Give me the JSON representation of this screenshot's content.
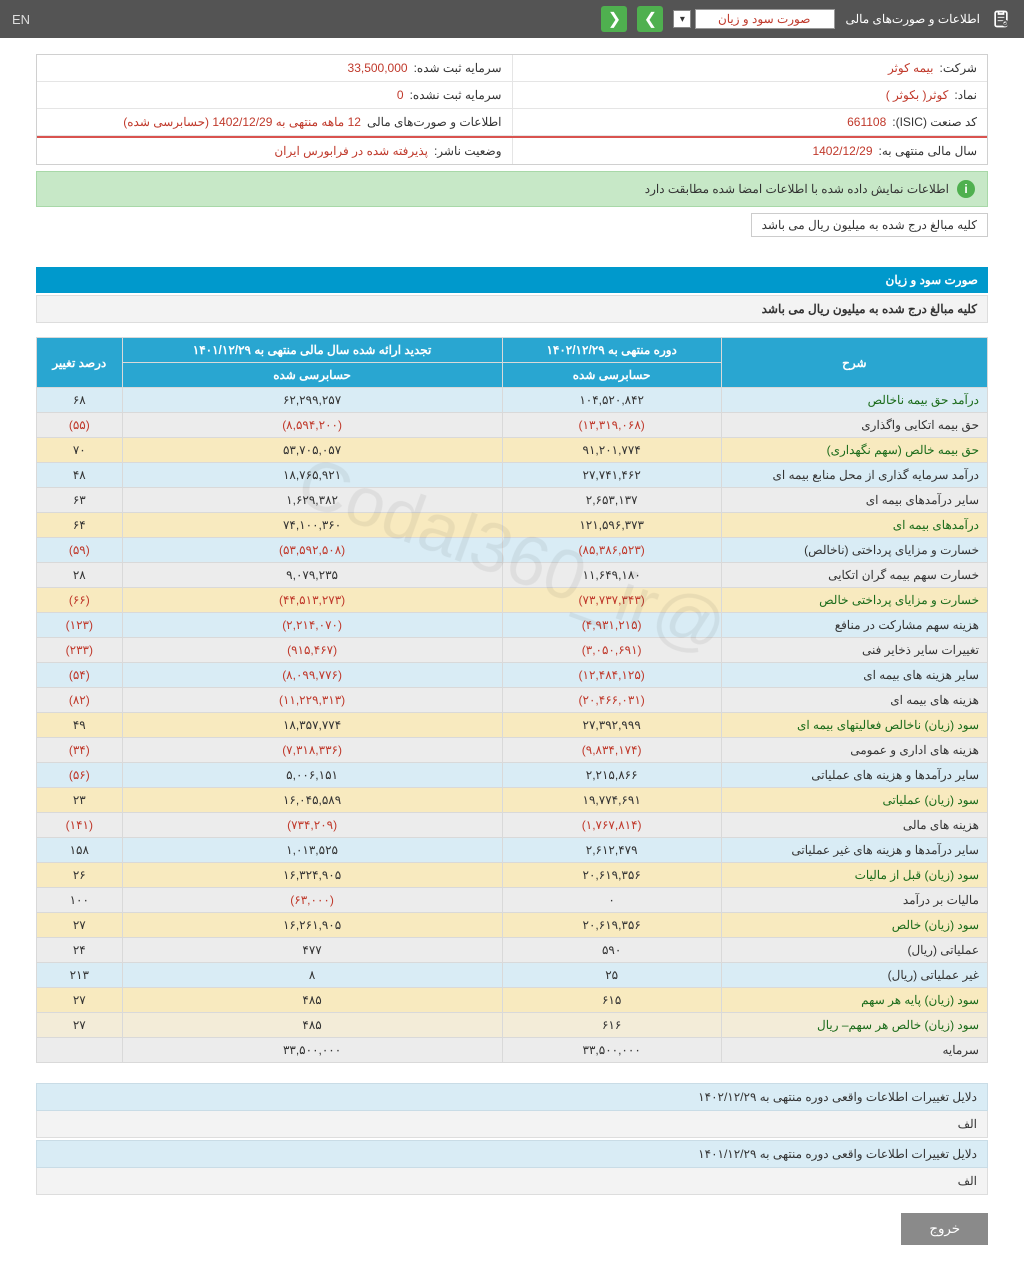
{
  "topbar": {
    "title": "اطلاعات و صورت‌های مالی",
    "select_value": "صورت سود و زیان",
    "lang": "EN"
  },
  "meta": {
    "rows": [
      [
        {
          "label": "شرکت:",
          "value": "بیمه کوثر"
        },
        {
          "label": "سرمایه ثبت شده:",
          "value": "33,500,000"
        }
      ],
      [
        {
          "label": "نماد:",
          "value": "کوثر( بکوثر )"
        },
        {
          "label": "سرمایه ثبت نشده:",
          "value": "0"
        }
      ],
      [
        {
          "label": "کد صنعت (ISIC):",
          "value": "661108"
        },
        {
          "label": "اطلاعات و صورت‌های مالی",
          "value": "12 ماهه منتهی به 1402/12/29 (حسابرسی شده)"
        }
      ],
      [
        {
          "label": "سال مالی منتهی به:",
          "value": "1402/12/29"
        },
        {
          "label": "وضعیت ناشر:",
          "value": "پذيرفته شده در فرابورس ايران"
        }
      ]
    ]
  },
  "alert": "اطلاعات نمایش داده شده با اطلاعات امضا شده مطابقت دارد",
  "note": "کلیه مبالغ درج شده به میلیون ریال می باشد",
  "section": {
    "title": "صورت سود و زیان",
    "subtitle": "کلیه مبالغ درج شده به میلیون ریال می باشد"
  },
  "table": {
    "headers": {
      "desc": "شرح",
      "period1": "دوره منتهی به ۱۴۰۲/۱۲/۲۹",
      "period2": "تجدید ارائه شده سال مالی منتهی به ۱۴۰۱/۱۲/۲۹",
      "change": "درصد تغییر",
      "audited": "حسابرسی شده"
    },
    "rows": [
      {
        "cls": "r-blue",
        "hl": true,
        "desc": "درآمد حق بیمه ناخالص",
        "v1": "۱۰۴,۵۲۰,۸۴۲",
        "v2": "۶۲,۲۹۹,۲۵۷",
        "ch": "۶۸"
      },
      {
        "cls": "r-grey",
        "desc": "حق بیمه اتکایی واگذاری",
        "v1": "(۱۳,۳۱۹,۰۶۸)",
        "v2": "(۸,۵۹۴,۲۰۰)",
        "ch": "(۵۵)",
        "neg": true
      },
      {
        "cls": "r-yellow",
        "hl": true,
        "desc": "حق بیمه خالص (سهم نگهداری)",
        "v1": "۹۱,۲۰۱,۷۷۴",
        "v2": "۵۳,۷۰۵,۰۵۷",
        "ch": "۷۰"
      },
      {
        "cls": "r-blue",
        "desc": "درآمد سرمایه گذاری از محل منابع بیمه ای",
        "v1": "۲۷,۷۴۱,۴۶۲",
        "v2": "۱۸,۷۶۵,۹۲۱",
        "ch": "۴۸"
      },
      {
        "cls": "r-grey",
        "desc": "سایر درآمدهای بیمه ای",
        "v1": "۲,۶۵۳,۱۳۷",
        "v2": "۱,۶۲۹,۳۸۲",
        "ch": "۶۳"
      },
      {
        "cls": "r-yellow",
        "hl": true,
        "desc": "درآمدهای بیمه ای",
        "v1": "۱۲۱,۵۹۶,۳۷۳",
        "v2": "۷۴,۱۰۰,۳۶۰",
        "ch": "۶۴"
      },
      {
        "cls": "r-blue",
        "desc": "خسارت و مزایای پرداختی (ناخالص)",
        "v1": "(۸۵,۳۸۶,۵۲۳)",
        "v2": "(۵۳,۵۹۲,۵۰۸)",
        "ch": "(۵۹)",
        "neg": true
      },
      {
        "cls": "r-grey",
        "desc": "خسارت سهم بیمه گران اتکایی",
        "v1": "۱۱,۶۴۹,۱۸۰",
        "v2": "۹,۰۷۹,۲۳۵",
        "ch": "۲۸"
      },
      {
        "cls": "r-yellow",
        "hl": true,
        "desc": "خسارت و مزایای پرداختی خالص",
        "v1": "(۷۳,۷۳۷,۳۴۳)",
        "v2": "(۴۴,۵۱۳,۲۷۳)",
        "ch": "(۶۶)",
        "neg": true
      },
      {
        "cls": "r-blue",
        "desc": "هزینه سهم مشارکت در منافع",
        "v1": "(۴,۹۳۱,۲۱۵)",
        "v2": "(۲,۲۱۴,۰۷۰)",
        "ch": "(۱۲۳)",
        "neg": true
      },
      {
        "cls": "r-grey",
        "desc": "تغییرات سایر ذخایر فنی",
        "v1": "(۳,۰۵۰,۶۹۱)",
        "v2": "(۹۱۵,۴۶۷)",
        "ch": "(۲۳۳)",
        "neg": true
      },
      {
        "cls": "r-blue",
        "desc": "سایر هزینه های بیمه ای",
        "v1": "(۱۲,۴۸۴,۱۲۵)",
        "v2": "(۸,۰۹۹,۷۷۶)",
        "ch": "(۵۴)",
        "neg": true
      },
      {
        "cls": "r-grey",
        "desc": "هزینه های بیمه ای",
        "v1": "(۲۰,۴۶۶,۰۳۱)",
        "v2": "(۱۱,۲۲۹,۳۱۳)",
        "ch": "(۸۲)",
        "neg": true
      },
      {
        "cls": "r-yellow",
        "hl": true,
        "desc": "سود (زیان) ناخالص فعالیتهای بیمه ای",
        "v1": "۲۷,۳۹۲,۹۹۹",
        "v2": "۱۸,۳۵۷,۷۷۴",
        "ch": "۴۹"
      },
      {
        "cls": "r-grey",
        "desc": "هزینه های اداری و عمومی",
        "v1": "(۹,۸۳۴,۱۷۴)",
        "v2": "(۷,۳۱۸,۳۳۶)",
        "ch": "(۳۴)",
        "neg": true
      },
      {
        "cls": "r-blue",
        "desc": "سایر درآمدها و هزینه های عملیاتی",
        "v1": "۲,۲۱۵,۸۶۶",
        "v2": "۵,۰۰۶,۱۵۱",
        "ch": "(۵۶)",
        "chneg": true
      },
      {
        "cls": "r-yellow",
        "hl": true,
        "desc": "سود (زیان) عملیاتی",
        "v1": "۱۹,۷۷۴,۶۹۱",
        "v2": "۱۶,۰۴۵,۵۸۹",
        "ch": "۲۳"
      },
      {
        "cls": "r-grey",
        "desc": "هزینه های مالی",
        "v1": "(۱,۷۶۷,۸۱۴)",
        "v2": "(۷۳۴,۲۰۹)",
        "ch": "(۱۴۱)",
        "neg": true
      },
      {
        "cls": "r-blue",
        "desc": "سایر درآمدها و هزینه های غیر عملیاتی",
        "v1": "۲,۶۱۲,۴۷۹",
        "v2": "۱,۰۱۳,۵۲۵",
        "ch": "۱۵۸"
      },
      {
        "cls": "r-yellow",
        "hl": true,
        "desc": "سود (زیان) قبل از مالیات",
        "v1": "۲۰,۶۱۹,۳۵۶",
        "v2": "۱۶,۳۲۴,۹۰۵",
        "ch": "۲۶"
      },
      {
        "cls": "r-grey",
        "desc": "مالیات بر درآمد",
        "v1": "۰",
        "v2": "(۶۳,۰۰۰)",
        "v2neg": true,
        "ch": "۱۰۰"
      },
      {
        "cls": "r-yellow",
        "hl": true,
        "desc": "سود (زیان) خالص",
        "v1": "۲۰,۶۱۹,۳۵۶",
        "v2": "۱۶,۲۶۱,۹۰۵",
        "ch": "۲۷"
      },
      {
        "cls": "r-grey",
        "desc": "عملیاتی (ریال)",
        "v1": "۵۹۰",
        "v2": "۴۷۷",
        "ch": "۲۴"
      },
      {
        "cls": "r-blue",
        "desc": "غیر عملیاتی (ریال)",
        "v1": "۲۵",
        "v2": "۸",
        "ch": "۲۱۳"
      },
      {
        "cls": "r-yellow",
        "hl": true,
        "desc": "سود (زیان) پایه هر سهم",
        "v1": "۶۱۵",
        "v2": "۴۸۵",
        "ch": "۲۷"
      },
      {
        "cls": "r-beige",
        "hl": true,
        "desc": "سود (زیان) خالص هر سهم– ریال",
        "v1": "۶۱۶",
        "v2": "۴۸۵",
        "ch": "۲۷"
      },
      {
        "cls": "r-grey",
        "desc": "سرمایه",
        "v1": "۳۳,۵۰۰,۰۰۰",
        "v2": "۳۳,۵۰۰,۰۰۰",
        "ch": ""
      }
    ]
  },
  "reasons": [
    {
      "hd": "دلایل تغییرات اطلاعات واقعی دوره منتهی به ۱۴۰۲/۱۲/۲۹",
      "bd": "الف"
    },
    {
      "hd": "دلایل تغییرات اطلاعات واقعی دوره منتهی به ۱۴۰۱/۱۲/۲۹",
      "bd": "الف"
    }
  ],
  "exit": "خروج",
  "watermark": "@Codal360_ir"
}
